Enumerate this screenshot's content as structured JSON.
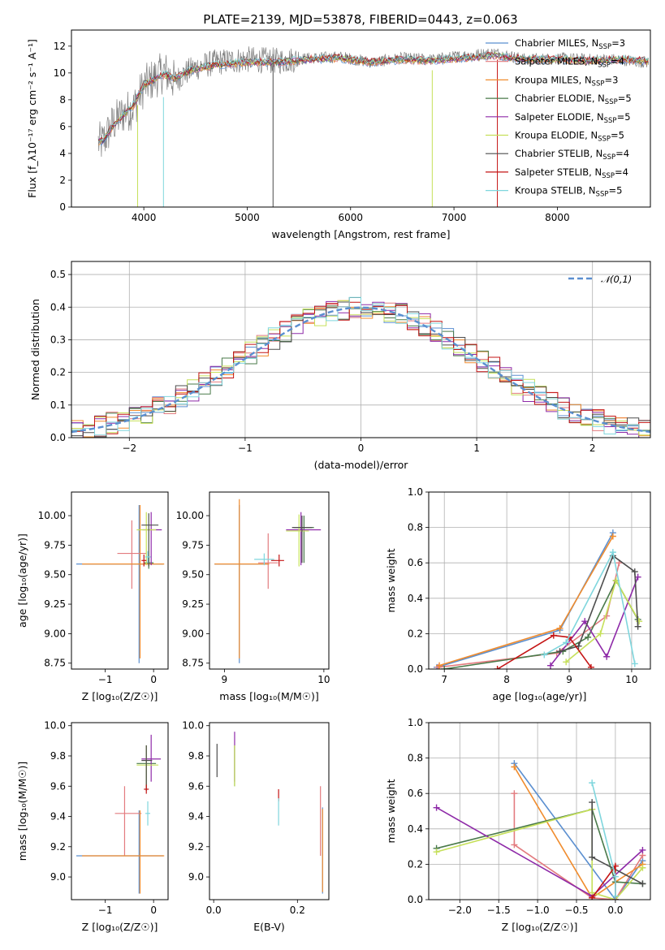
{
  "title": "PLATE=2139, MJD=53878, FIBERID=0443, z=0.063",
  "colors": [
    "#5b8fd0",
    "#e37b7f",
    "#f08c2e",
    "#4a7a4a",
    "#8e2aa8",
    "#c6e05a",
    "#4d4d4d",
    "#c41414",
    "#7fd6dd"
  ],
  "chart_data": [
    {
      "id": "spectrum",
      "type": "line",
      "xlabel": "wavelength [Angstrom, rest frame]",
      "ylabel": "Flux [f_λ10⁻¹⁷ erg cm⁻² s⁻¹ A⁻¹]",
      "xlim": [
        3300,
        8900
      ],
      "ylim": [
        0,
        13.2
      ],
      "xticks": [
        4000,
        5000,
        6000,
        7000,
        8000
      ],
      "yticks": [
        0,
        2,
        4,
        6,
        8,
        10,
        12
      ],
      "grid": false,
      "legend_position": "right",
      "legend": [
        "Chabrier MILES, N_SSP=3",
        "Salpeter MILES, N_SSP=4",
        "Kroupa MILES, N_SSP=3",
        "Chabrier ELODIE, N_SSP=5",
        "Salpeter ELODIE, N_SSP=5",
        "Kroupa ELODIE, N_SSP=5",
        "Chabrier STELIB, N_SSP=4",
        "Salpeter STELIB, N_SSP=4",
        "Kroupa STELIB, N_SSP=5"
      ],
      "data_series": {
        "name": "data",
        "x": [
          3600,
          3700,
          3800,
          3900,
          4000,
          4100,
          4200,
          4300,
          4400,
          4500,
          4700,
          5000,
          5300,
          5600,
          5900,
          6200,
          6500,
          6800,
          7100,
          7400,
          7700,
          8000,
          8300,
          8600,
          8850
        ],
        "y": [
          4.8,
          6.2,
          7.0,
          7.4,
          9.0,
          9.6,
          10.1,
          9.4,
          10.0,
          10.4,
          10.8,
          11.0,
          10.9,
          11.1,
          11.2,
          10.8,
          11.1,
          11.0,
          11.3,
          11.5,
          11.0,
          11.1,
          11.0,
          11.0,
          10.8
        ]
      },
      "model_series": {
        "x": [
          3600,
          3700,
          3800,
          3900,
          4000,
          4100,
          4200,
          4300,
          4400,
          4500,
          4700,
          5000,
          5300,
          5600,
          5900,
          6200,
          6500,
          6800,
          7100,
          7400,
          7700,
          8000,
          8300,
          8600,
          8850
        ],
        "y": [
          4.9,
          6.0,
          6.8,
          7.6,
          9.1,
          9.5,
          9.9,
          9.6,
          10.0,
          10.3,
          10.6,
          10.8,
          10.8,
          11.0,
          11.1,
          10.8,
          11.0,
          10.9,
          11.1,
          11.3,
          11.0,
          11.0,
          10.9,
          11.0,
          10.9
        ]
      }
    },
    {
      "id": "residuals",
      "type": "line",
      "xlabel": "(data-model)/error",
      "ylabel": "Normed distribution",
      "xlim": [
        -2.5,
        2.5
      ],
      "ylim": [
        0,
        0.54
      ],
      "xticks": [
        -2,
        -1,
        0,
        1,
        2
      ],
      "yticks": [
        0.0,
        0.1,
        0.2,
        0.3,
        0.4,
        0.5
      ],
      "grid": true,
      "legend": [
        "𝒩(0,1)"
      ],
      "legend_position": "top-right",
      "reference_curve": "standard normal pdf"
    },
    {
      "id": "age-vs-Z",
      "type": "scatter",
      "xlabel": "Z [log₁₀(Z/Z☉)]",
      "ylabel": "age  [log₁₀(age/yr)]",
      "xlim": [
        -1.7,
        0.3
      ],
      "ylim": [
        8.7,
        10.2
      ],
      "xticks": [
        -1,
        0
      ],
      "yticks": [
        8.75,
        9.0,
        9.25,
        9.5,
        9.75,
        10.0
      ],
      "points": [
        {
          "x": -0.3,
          "y": 9.59,
          "xerr": [
            1.3,
            0.5
          ],
          "yerr": [
            0.84,
            0.5
          ]
        },
        {
          "x": -0.45,
          "y": 9.68,
          "xerr": [
            0.3,
            0.3
          ],
          "yerr": [
            0.3,
            0.28
          ]
        },
        {
          "x": -0.28,
          "y": 9.59,
          "xerr": [
            1.2,
            0.5
          ],
          "yerr": [
            0.8,
            0.5
          ]
        },
        {
          "x": -0.1,
          "y": 9.6,
          "xerr": [
            0.1,
            0.1
          ],
          "yerr": [
            0.05,
            0.05
          ]
        },
        {
          "x": -0.05,
          "y": 9.88,
          "xerr": [
            0.18,
            0.22
          ],
          "yerr": [
            0.3,
            0.15
          ]
        },
        {
          "x": -0.15,
          "y": 9.88,
          "xerr": [
            0.2,
            0.2
          ],
          "yerr": [
            0.3,
            0.15
          ]
        },
        {
          "x": -0.1,
          "y": 9.92,
          "xerr": [
            0.15,
            0.2
          ],
          "yerr": [
            0.35,
            0.1
          ]
        },
        {
          "x": -0.2,
          "y": 9.62,
          "xerr": [
            0.05,
            0.05
          ],
          "yerr": [
            0.05,
            0.05
          ]
        },
        {
          "x": -0.12,
          "y": 9.65,
          "xerr": [
            0.06,
            0.06
          ],
          "yerr": [
            0.05,
            0.05
          ]
        }
      ]
    },
    {
      "id": "age-vs-mass",
      "type": "scatter",
      "xlabel": "mass [log₁₀(M/M☉)]",
      "ylabel": "",
      "xlim": [
        8.85,
        10.05
      ],
      "ylim": [
        8.7,
        10.2
      ],
      "xticks": [
        9,
        10
      ],
      "yticks": [
        8.75,
        9.0,
        9.25,
        9.5,
        9.75,
        10.0
      ],
      "points": [
        {
          "x": 9.15,
          "y": 9.59,
          "xerr": [
            0.25,
            0.3
          ],
          "yerr": [
            0.84,
            0.5
          ]
        },
        {
          "x": 9.44,
          "y": 9.6,
          "xerr": [
            0.1,
            0.1
          ],
          "yerr": [
            0.22,
            0.25
          ]
        },
        {
          "x": 9.15,
          "y": 9.59,
          "xerr": [
            0.25,
            0.3
          ],
          "yerr": [
            0.8,
            0.55
          ]
        },
        {
          "x": 9.8,
          "y": 9.9,
          "xerr": [
            0.1,
            0.1
          ],
          "yerr": [
            0.3,
            0.1
          ]
        },
        {
          "x": 9.77,
          "y": 9.88,
          "xerr": [
            0.15,
            0.2
          ],
          "yerr": [
            0.3,
            0.15
          ]
        },
        {
          "x": 9.75,
          "y": 9.87,
          "xerr": [
            0.13,
            0.1
          ],
          "yerr": [
            0.3,
            0.14
          ]
        },
        {
          "x": 9.78,
          "y": 9.9,
          "xerr": [
            0.1,
            0.1
          ],
          "yerr": [
            0.3,
            0.1
          ]
        },
        {
          "x": 9.55,
          "y": 9.62,
          "xerr": [
            0.08,
            0.05
          ],
          "yerr": [
            0.05,
            0.05
          ]
        },
        {
          "x": 9.4,
          "y": 9.63,
          "xerr": [
            0.1,
            0.1
          ],
          "yerr": [
            0.05,
            0.05
          ]
        }
      ]
    },
    {
      "id": "weight-vs-age",
      "type": "line",
      "xlabel": "age  [log₁₀(age/yr)]",
      "ylabel": "mass weight",
      "xlim": [
        6.75,
        10.3
      ],
      "ylim": [
        0,
        1.0
      ],
      "xticks": [
        7,
        8,
        9,
        10
      ],
      "yticks": [
        0.0,
        0.2,
        0.4,
        0.6,
        0.8,
        1.0
      ],
      "grid": true,
      "series": [
        {
          "x": [
            6.88,
            8.85,
            9.7
          ],
          "y": [
            0.01,
            0.22,
            0.77
          ]
        },
        {
          "x": [
            6.9,
            8.8,
            9.6,
            9.8
          ],
          "y": [
            0.01,
            0.09,
            0.3,
            0.6
          ]
        },
        {
          "x": [
            6.92,
            8.85,
            9.7
          ],
          "y": [
            0.02,
            0.23,
            0.75
          ]
        },
        {
          "x": [
            7.0,
            8.9,
            9.3,
            9.75,
            10.1
          ],
          "y": [
            0.0,
            0.1,
            0.18,
            0.5,
            0.28
          ]
        },
        {
          "x": [
            8.7,
            9.25,
            9.6,
            10.1
          ],
          "y": [
            0.02,
            0.27,
            0.07,
            0.52
          ]
        },
        {
          "x": [
            8.95,
            9.5,
            9.75,
            10.12
          ],
          "y": [
            0.04,
            0.2,
            0.5,
            0.27
          ]
        },
        {
          "x": [
            8.85,
            9.15,
            9.7,
            10.05,
            10.1
          ],
          "y": [
            0.1,
            0.13,
            0.64,
            0.55,
            0.24
          ]
        },
        {
          "x": [
            7.85,
            8.75,
            9.0,
            9.35
          ],
          "y": [
            0.0,
            0.19,
            0.18,
            0.01
          ]
        },
        {
          "x": [
            8.6,
            8.95,
            9.7,
            10.05
          ],
          "y": [
            0.08,
            0.15,
            0.66,
            0.03
          ]
        }
      ]
    },
    {
      "id": "mass-vs-Z",
      "type": "scatter",
      "xlabel": "Z [log₁₀(Z/Z☉)]",
      "ylabel": "mass [log₁₀(M/M☉)]",
      "xlim": [
        -1.7,
        0.3
      ],
      "ylim": [
        8.85,
        10.02
      ],
      "xticks": [
        -1,
        0
      ],
      "yticks": [
        9.0,
        9.2,
        9.4,
        9.6,
        9.8,
        10.0
      ],
      "points": [
        {
          "x": -0.3,
          "y": 9.14,
          "xerr": [
            1.3,
            0.5
          ],
          "yerr": [
            0.25,
            0.3
          ]
        },
        {
          "x": -0.6,
          "y": 9.42,
          "xerr": [
            0.2,
            0.35
          ],
          "yerr": [
            0.28,
            0.18
          ]
        },
        {
          "x": -0.28,
          "y": 9.14,
          "xerr": [
            1.2,
            0.5
          ],
          "yerr": [
            0.25,
            0.3
          ]
        },
        {
          "x": -0.15,
          "y": 9.75,
          "xerr": [
            0.2,
            0.2
          ],
          "yerr": [
            0.15,
            0.12
          ]
        },
        {
          "x": -0.05,
          "y": 9.78,
          "xerr": [
            0.2,
            0.2
          ],
          "yerr": [
            0.15,
            0.16
          ]
        },
        {
          "x": -0.15,
          "y": 9.74,
          "xerr": [
            0.2,
            0.25
          ],
          "yerr": [
            0.15,
            0.13
          ]
        },
        {
          "x": -0.15,
          "y": 9.77,
          "xerr": [
            0.1,
            0.12
          ],
          "yerr": [
            0.2,
            0.1
          ]
        },
        {
          "x": -0.15,
          "y": 9.58,
          "xerr": [
            0.05,
            0.05
          ],
          "yerr": [
            0.03,
            0.03
          ]
        },
        {
          "x": -0.12,
          "y": 9.42,
          "xerr": [
            0.05,
            0.05
          ],
          "yerr": [
            0.08,
            0.08
          ]
        }
      ]
    },
    {
      "id": "mass-vs-EBV",
      "type": "scatter",
      "xlabel": "E(B-V)",
      "ylabel": "",
      "xlim": [
        -0.01,
        0.275
      ],
      "ylim": [
        8.85,
        10.02
      ],
      "xticks": [
        0.0,
        0.2
      ],
      "yticks": [
        9.0,
        9.2,
        9.4,
        9.6,
        9.8,
        10.0
      ],
      "points": [
        {
          "x": 0.26,
          "y": 9.14,
          "yerr": [
            0.25,
            0.32
          ]
        },
        {
          "x": 0.255,
          "y": 9.42,
          "yerr": [
            0.28,
            0.18
          ]
        },
        {
          "x": 0.26,
          "y": 9.15,
          "yerr": [
            0.25,
            0.3
          ]
        },
        {
          "x": 0.05,
          "y": 9.75,
          "yerr": [
            0.15,
            0.12
          ]
        },
        {
          "x": 0.05,
          "y": 9.78,
          "yerr": [
            0.15,
            0.18
          ]
        },
        {
          "x": 0.05,
          "y": 9.75,
          "yerr": [
            0.15,
            0.12
          ]
        },
        {
          "x": 0.008,
          "y": 9.78,
          "yerr": [
            0.12,
            0.1
          ]
        },
        {
          "x": 0.155,
          "y": 9.55,
          "yerr": [
            0.05,
            0.03
          ]
        },
        {
          "x": 0.155,
          "y": 9.44,
          "yerr": [
            0.1,
            0.08
          ]
        }
      ]
    },
    {
      "id": "weight-vs-Z",
      "type": "line",
      "xlabel": "Z [log₁₀(Z/Z☉)]",
      "ylabel": "mass weight",
      "xlim": [
        -2.4,
        0.45
      ],
      "ylim": [
        0,
        1.0
      ],
      "xticks": [
        -2.0,
        -1.5,
        -1.0,
        -0.5,
        0.0
      ],
      "yticks": [
        0.0,
        0.2,
        0.4,
        0.6,
        0.8,
        1.0
      ],
      "grid": true,
      "series": [
        {
          "x": [
            -1.3,
            0.0,
            0.35
          ],
          "y": [
            0.77,
            0.0,
            0.22
          ]
        },
        {
          "x": [
            -1.3,
            -1.3,
            -0.3,
            0.0,
            0.35
          ],
          "y": [
            0.6,
            0.31,
            0.01,
            0.0,
            0.25
          ]
        },
        {
          "x": [
            -1.3,
            -0.3,
            0.0,
            0.35
          ],
          "y": [
            0.75,
            0.01,
            0.1,
            0.2
          ]
        },
        {
          "x": [
            -2.3,
            -0.3,
            0.0,
            0.35
          ],
          "y": [
            0.29,
            0.51,
            0.1,
            0.09
          ]
        },
        {
          "x": [
            -2.3,
            -0.3,
            0.35
          ],
          "y": [
            0.52,
            0.02,
            0.28
          ]
        },
        {
          "x": [
            -2.3,
            -0.3,
            -0.3,
            0.0,
            0.35
          ],
          "y": [
            0.27,
            0.51,
            0.04,
            0.0,
            0.18
          ]
        },
        {
          "x": [
            -0.3,
            -0.3,
            0.35
          ],
          "y": [
            0.55,
            0.24,
            0.09
          ]
        },
        {
          "x": [
            -0.3,
            0.0,
            0.0
          ],
          "y": [
            0.01,
            0.19,
            0.0
          ]
        },
        {
          "x": [
            -0.3,
            0.0,
            0.0
          ],
          "y": [
            0.66,
            0.13,
            0.02
          ]
        }
      ]
    }
  ]
}
